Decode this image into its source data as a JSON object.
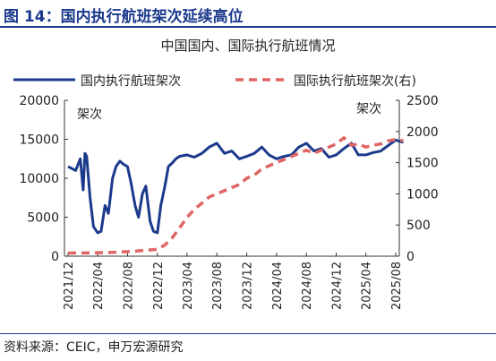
{
  "figure": {
    "title": "图 14：国内执行航班架次延续高位",
    "source": "资料来源：CEIC，申万宏源研究"
  },
  "colors": {
    "domestic": "#1c3a8c",
    "international": "#e06666",
    "accent": "#1c3a8c"
  },
  "chart_data": {
    "type": "line",
    "title": "中国国内、国际执行航班情况",
    "y_left_label": "架次",
    "y_right_label": "架次",
    "ylim_left": [
      0,
      20000
    ],
    "ylim_right": [
      0,
      2500
    ],
    "yticks_left": [
      "0",
      "5000",
      "10000",
      "15000",
      "20000"
    ],
    "yticks_right": [
      "0",
      "500",
      "1000",
      "1500",
      "2000",
      "2500"
    ],
    "grid": false,
    "legend_position": "top",
    "x_tick_labels": [
      "2021/12",
      "2022/04",
      "2022/08",
      "2022/12",
      "2023/04",
      "2023/08",
      "2023/12",
      "2024/04",
      "2024/08",
      "2024/12",
      "2025/04",
      "2025/08"
    ],
    "series": [
      {
        "name": "国内执行航班架次",
        "axis": "left",
        "style": "solid",
        "points": [
          [
            "2021-12-01",
            11500
          ],
          [
            "2022-01-01",
            11000
          ],
          [
            "2022-01-20",
            12500
          ],
          [
            "2022-02-01",
            8500
          ],
          [
            "2022-02-08",
            13200
          ],
          [
            "2022-02-15",
            12800
          ],
          [
            "2022-03-01",
            7500
          ],
          [
            "2022-03-15",
            3800
          ],
          [
            "2022-04-01",
            3000
          ],
          [
            "2022-04-15",
            3200
          ],
          [
            "2022-05-01",
            6500
          ],
          [
            "2022-05-15",
            5500
          ],
          [
            "2022-06-01",
            10000
          ],
          [
            "2022-06-15",
            11500
          ],
          [
            "2022-07-01",
            12200
          ],
          [
            "2022-07-15",
            11800
          ],
          [
            "2022-08-01",
            11500
          ],
          [
            "2022-08-15",
            9500
          ],
          [
            "2022-09-01",
            6500
          ],
          [
            "2022-09-15",
            5000
          ],
          [
            "2022-10-01",
            8000
          ],
          [
            "2022-10-15",
            9000
          ],
          [
            "2022-11-01",
            4500
          ],
          [
            "2022-11-15",
            3200
          ],
          [
            "2022-12-01",
            3000
          ],
          [
            "2022-12-15",
            6500
          ],
          [
            "2023-01-01",
            9000
          ],
          [
            "2023-01-15",
            11500
          ],
          [
            "2023-02-01",
            12000
          ],
          [
            "2023-02-15",
            12500
          ],
          [
            "2023-03-01",
            12800
          ],
          [
            "2023-04-01",
            13000
          ],
          [
            "2023-05-01",
            12700
          ],
          [
            "2023-06-01",
            13200
          ],
          [
            "2023-07-01",
            14000
          ],
          [
            "2023-08-01",
            14500
          ],
          [
            "2023-09-01",
            13200
          ],
          [
            "2023-10-01",
            13500
          ],
          [
            "2023-11-01",
            12500
          ],
          [
            "2023-12-01",
            12800
          ],
          [
            "2024-01-01",
            13200
          ],
          [
            "2024-02-01",
            14000
          ],
          [
            "2024-03-01",
            13000
          ],
          [
            "2024-04-01",
            12500
          ],
          [
            "2024-05-01",
            12800
          ],
          [
            "2024-06-01",
            13000
          ],
          [
            "2024-07-01",
            14000
          ],
          [
            "2024-08-01",
            14500
          ],
          [
            "2024-09-01",
            13500
          ],
          [
            "2024-10-01",
            13800
          ],
          [
            "2024-11-01",
            12700
          ],
          [
            "2024-12-01",
            13000
          ],
          [
            "2025-01-01",
            13800
          ],
          [
            "2025-02-01",
            14500
          ],
          [
            "2025-03-01",
            13000
          ],
          [
            "2025-04-01",
            13000
          ],
          [
            "2025-05-01",
            13300
          ],
          [
            "2025-06-01",
            13500
          ],
          [
            "2025-07-01",
            14200
          ],
          [
            "2025-08-01",
            14900
          ],
          [
            "2025-09-01",
            14600
          ]
        ]
      },
      {
        "name": "国际执行航班架次(右)",
        "axis": "right",
        "style": "dashed",
        "points": [
          [
            "2021-12-01",
            50
          ],
          [
            "2022-03-01",
            55
          ],
          [
            "2022-06-01",
            60
          ],
          [
            "2022-09-01",
            80
          ],
          [
            "2022-12-01",
            110
          ],
          [
            "2023-01-01",
            180
          ],
          [
            "2023-02-01",
            300
          ],
          [
            "2023-03-01",
            450
          ],
          [
            "2023-04-01",
            620
          ],
          [
            "2023-05-01",
            750
          ],
          [
            "2023-06-01",
            850
          ],
          [
            "2023-07-01",
            950
          ],
          [
            "2023-08-01",
            1000
          ],
          [
            "2023-09-01",
            1050
          ],
          [
            "2023-10-01",
            1100
          ],
          [
            "2023-11-01",
            1150
          ],
          [
            "2023-12-01",
            1250
          ],
          [
            "2024-01-01",
            1300
          ],
          [
            "2024-02-01",
            1400
          ],
          [
            "2024-03-01",
            1450
          ],
          [
            "2024-04-01",
            1500
          ],
          [
            "2024-05-01",
            1550
          ],
          [
            "2024-06-01",
            1600
          ],
          [
            "2024-07-01",
            1650
          ],
          [
            "2024-08-01",
            1700
          ],
          [
            "2024-09-01",
            1650
          ],
          [
            "2024-10-01",
            1700
          ],
          [
            "2024-11-01",
            1750
          ],
          [
            "2024-12-01",
            1800
          ],
          [
            "2025-01-01",
            1900
          ],
          [
            "2025-02-01",
            1780
          ],
          [
            "2025-03-01",
            1800
          ],
          [
            "2025-04-01",
            1750
          ],
          [
            "2025-05-01",
            1780
          ],
          [
            "2025-06-01",
            1800
          ],
          [
            "2025-07-01",
            1850
          ],
          [
            "2025-08-01",
            1870
          ],
          [
            "2025-09-01",
            1850
          ]
        ]
      }
    ]
  }
}
